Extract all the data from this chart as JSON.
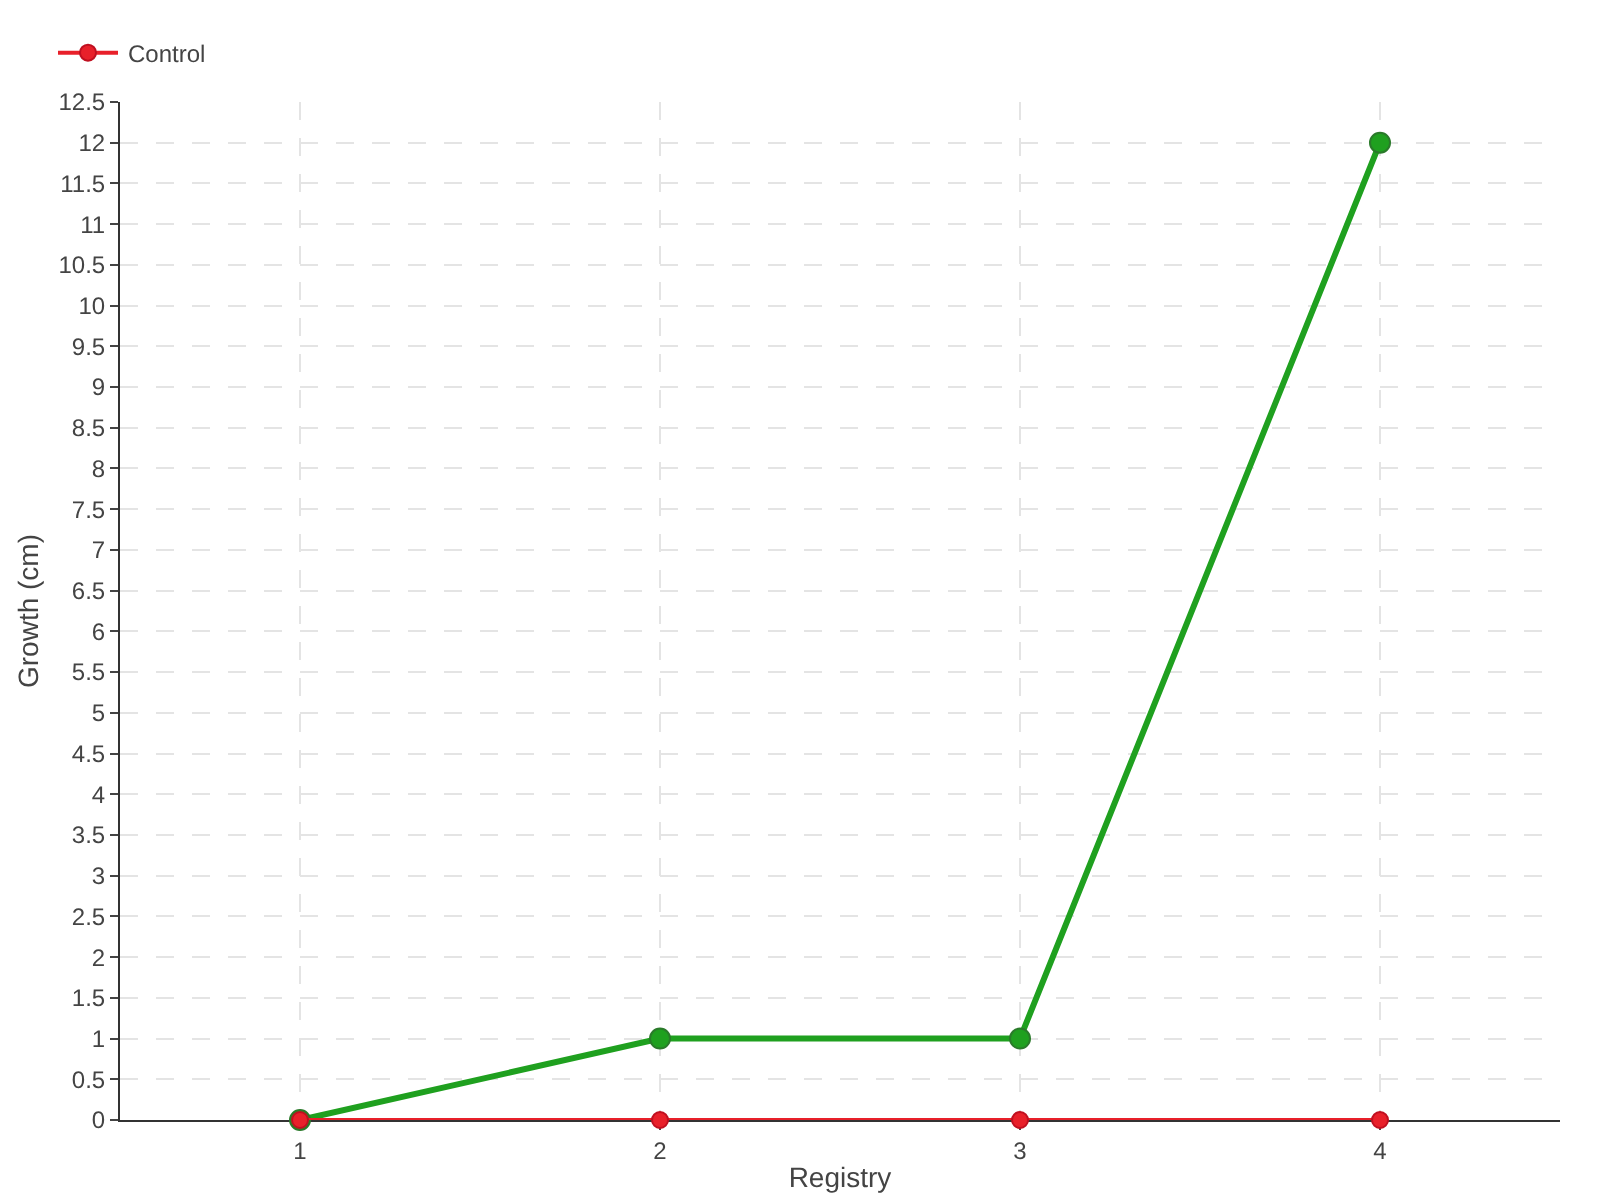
{
  "chart_data": {
    "type": "line",
    "xlabel": "Registry",
    "ylabel": "Growth (cm)",
    "categories": [
      "1",
      "2",
      "3",
      "4"
    ],
    "series": [
      {
        "color": "#1fa01f",
        "values": [
          0,
          1,
          1,
          12
        ]
      },
      {
        "name": "Control",
        "color": "#e8202a",
        "values": [
          0,
          0,
          0,
          0
        ]
      }
    ],
    "ylim": [
      0,
      12.5
    ],
    "yticks": [
      0,
      0.5,
      1,
      1.5,
      2,
      2.5,
      3,
      3.5,
      4,
      4.5,
      5,
      5.5,
      6,
      6.5,
      7,
      7.5,
      8,
      8.5,
      9,
      9.5,
      10,
      10.5,
      11,
      11.5,
      12,
      12.5
    ],
    "grid": true,
    "legend": "top left",
    "marker": "circle",
    "line_style": "solid"
  }
}
